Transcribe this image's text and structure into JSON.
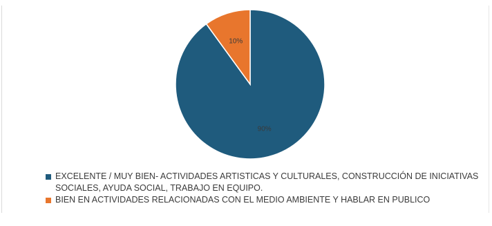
{
  "chart_data": {
    "type": "pie",
    "categories": [
      "EXCELENTE / MUY BIEN- ACTIVIDADES ARTISTICAS Y CULTURALES, CONSTRUCCIÓN DE INICIATIVAS SOCIALES, AYUDA SOCIAL, TRABAJO EN EQUIPO.",
      "BIEN EN ACTIVIDADES RELACIONADAS CON EL MEDIO AMBIENTE Y HABLAR EN PUBLICO"
    ],
    "values": [
      90,
      10
    ],
    "labels": [
      "90%",
      "10%"
    ],
    "colors": [
      "#1f5b7d",
      "#e8762d"
    ],
    "label_color": "#3a3a3a",
    "legend_position": "bottom-left"
  }
}
